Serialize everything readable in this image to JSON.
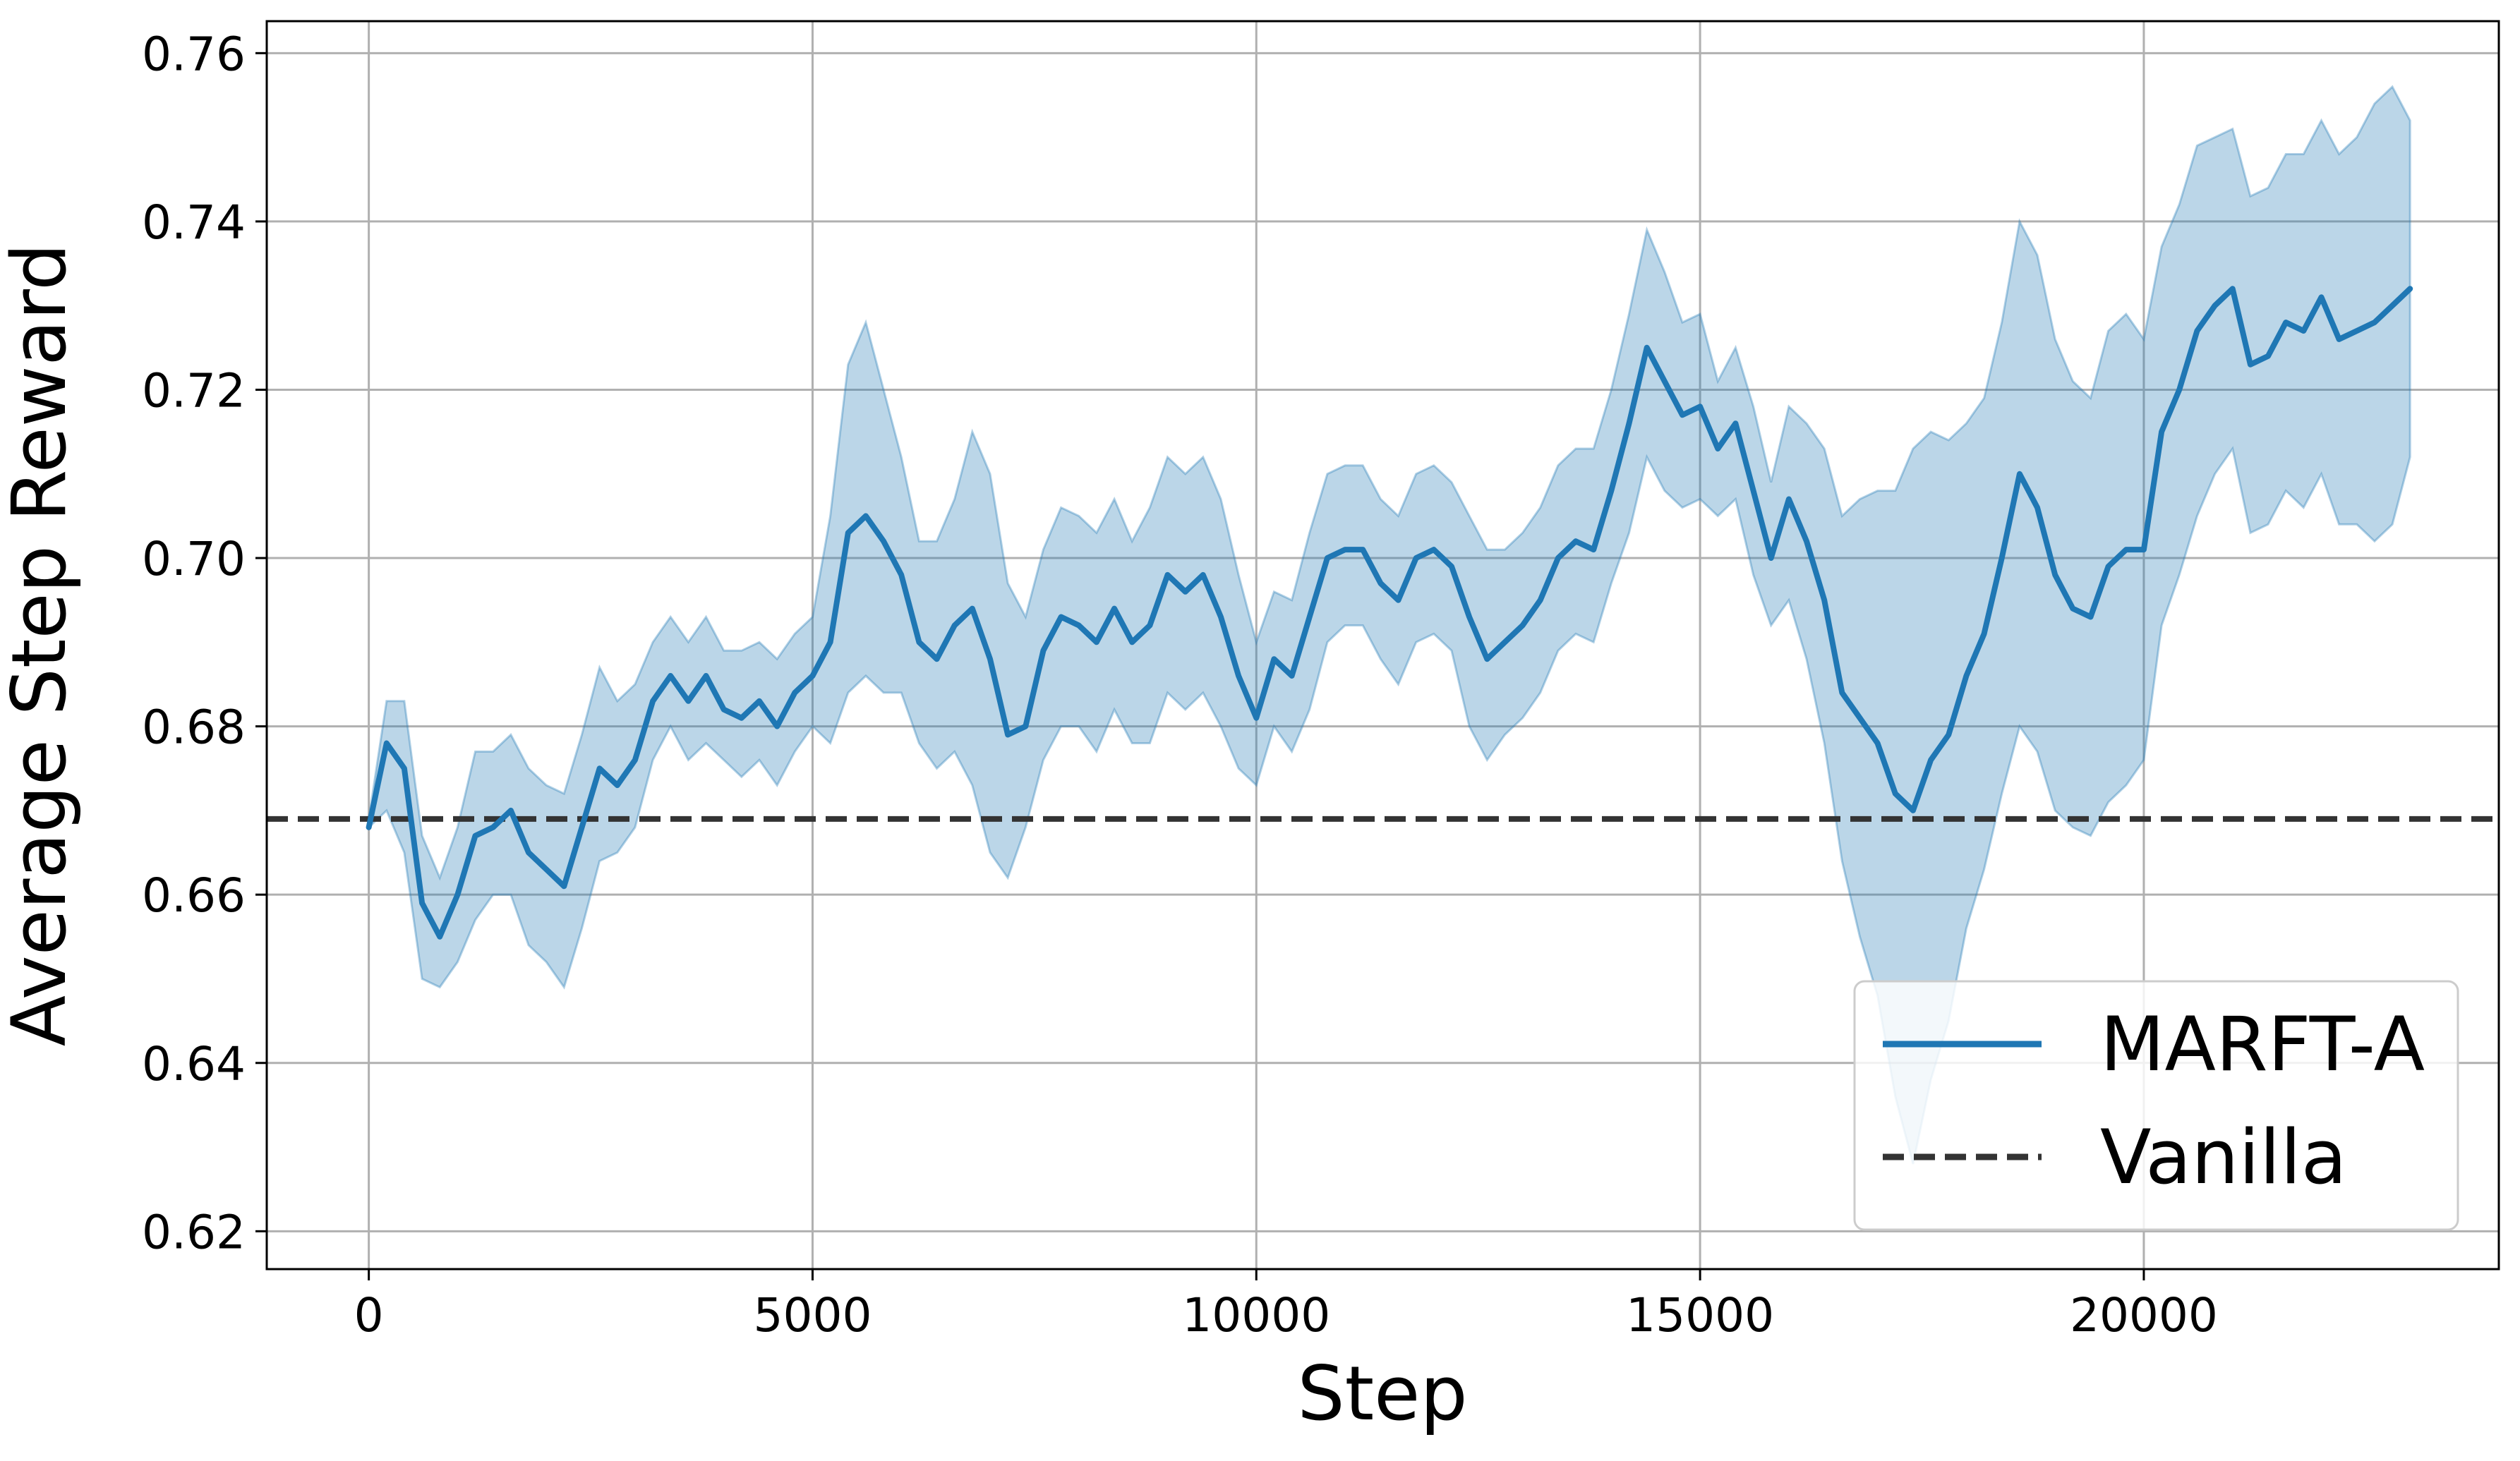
{
  "chart_data": {
    "type": "line",
    "xlabel": "Step",
    "ylabel": "Average Step Reward",
    "xlim": [
      -1150,
      24000
    ],
    "ylim": [
      0.6155,
      0.7638
    ],
    "x_ticks": [
      0,
      5000,
      10000,
      15000,
      20000
    ],
    "y_ticks": [
      0.62,
      0.64,
      0.66,
      0.68,
      0.7,
      0.72,
      0.74,
      0.76
    ],
    "grid": true,
    "legend_position": "bottom-right",
    "colors": {
      "series": "#1f77b4",
      "band": "#1f77b4",
      "baseline": "#333333"
    },
    "series": [
      {
        "name": "MARFT-A",
        "x": [
          0,
          200,
          400,
          600,
          800,
          1000,
          1200,
          1400,
          1600,
          1800,
          2000,
          2200,
          2400,
          2600,
          2800,
          3000,
          3200,
          3400,
          3600,
          3800,
          4000,
          4200,
          4400,
          4600,
          4800,
          5000,
          5200,
          5400,
          5600,
          5800,
          6000,
          6200,
          6400,
          6600,
          6800,
          7000,
          7200,
          7400,
          7600,
          7800,
          8000,
          8200,
          8400,
          8600,
          8800,
          9000,
          9200,
          9400,
          9600,
          9800,
          10000,
          10200,
          10400,
          10600,
          10800,
          11000,
          11200,
          11400,
          11600,
          11800,
          12000,
          12200,
          12400,
          12600,
          12800,
          13000,
          13200,
          13400,
          13600,
          13800,
          14000,
          14200,
          14400,
          14600,
          14800,
          15000,
          15200,
          15400,
          15600,
          15800,
          16000,
          16200,
          16400,
          16600,
          16800,
          17000,
          17200,
          17400,
          17600,
          17800,
          18000,
          18200,
          18400,
          18600,
          18800,
          19000,
          19200,
          19400,
          19600,
          19800,
          20000,
          20200,
          20400,
          20600,
          20800,
          21000,
          21200,
          21400,
          21600,
          21800,
          22000,
          22200,
          22400,
          22600,
          22800,
          23000
        ],
        "y": [
          0.668,
          0.678,
          0.675,
          0.659,
          0.655,
          0.66,
          0.667,
          0.668,
          0.67,
          0.665,
          0.663,
          0.661,
          0.668,
          0.675,
          0.673,
          0.676,
          0.683,
          0.686,
          0.683,
          0.686,
          0.682,
          0.681,
          0.683,
          0.68,
          0.684,
          0.686,
          0.69,
          0.703,
          0.705,
          0.702,
          0.698,
          0.69,
          0.688,
          0.692,
          0.694,
          0.688,
          0.679,
          0.68,
          0.689,
          0.693,
          0.692,
          0.69,
          0.694,
          0.69,
          0.692,
          0.698,
          0.696,
          0.698,
          0.693,
          0.686,
          0.681,
          0.688,
          0.686,
          0.693,
          0.7,
          0.701,
          0.701,
          0.697,
          0.695,
          0.7,
          0.701,
          0.699,
          0.693,
          0.688,
          0.69,
          0.692,
          0.695,
          0.7,
          0.702,
          0.701,
          0.708,
          0.716,
          0.725,
          0.721,
          0.717,
          0.718,
          0.713,
          0.716,
          0.708,
          0.7,
          0.707,
          0.702,
          0.695,
          0.684,
          0.681,
          0.678,
          0.672,
          0.67,
          0.676,
          0.679,
          0.686,
          0.691,
          0.7,
          0.71,
          0.706,
          0.698,
          0.694,
          0.693,
          0.699,
          0.701,
          0.701,
          0.715,
          0.72,
          0.727,
          0.73,
          0.732,
          0.723,
          0.724,
          0.728,
          0.727,
          0.731,
          0.726,
          0.727,
          0.728,
          0.73,
          0.732
        ],
        "band_lower": [
          0.668,
          0.67,
          0.665,
          0.65,
          0.649,
          0.652,
          0.657,
          0.66,
          0.66,
          0.654,
          0.652,
          0.649,
          0.656,
          0.664,
          0.665,
          0.668,
          0.676,
          0.68,
          0.676,
          0.678,
          0.676,
          0.674,
          0.676,
          0.673,
          0.677,
          0.68,
          0.678,
          0.684,
          0.686,
          0.684,
          0.684,
          0.678,
          0.675,
          0.677,
          0.673,
          0.665,
          0.662,
          0.668,
          0.676,
          0.68,
          0.68,
          0.677,
          0.682,
          0.678,
          0.678,
          0.684,
          0.682,
          0.684,
          0.68,
          0.675,
          0.673,
          0.68,
          0.677,
          0.682,
          0.69,
          0.692,
          0.692,
          0.688,
          0.685,
          0.69,
          0.691,
          0.689,
          0.68,
          0.676,
          0.679,
          0.681,
          0.684,
          0.689,
          0.691,
          0.69,
          0.697,
          0.703,
          0.712,
          0.708,
          0.706,
          0.707,
          0.705,
          0.707,
          0.698,
          0.692,
          0.695,
          0.688,
          0.678,
          0.664,
          0.655,
          0.648,
          0.636,
          0.628,
          0.638,
          0.645,
          0.656,
          0.663,
          0.672,
          0.68,
          0.677,
          0.67,
          0.668,
          0.667,
          0.671,
          0.673,
          0.676,
          0.692,
          0.698,
          0.705,
          0.71,
          0.713,
          0.703,
          0.704,
          0.708,
          0.706,
          0.71,
          0.704,
          0.704,
          0.702,
          0.704,
          0.712
        ],
        "band_upper": [
          0.669,
          0.683,
          0.683,
          0.667,
          0.662,
          0.668,
          0.677,
          0.677,
          0.679,
          0.675,
          0.673,
          0.672,
          0.679,
          0.687,
          0.683,
          0.685,
          0.69,
          0.693,
          0.69,
          0.693,
          0.689,
          0.689,
          0.69,
          0.688,
          0.691,
          0.693,
          0.705,
          0.723,
          0.728,
          0.72,
          0.712,
          0.702,
          0.702,
          0.707,
          0.715,
          0.71,
          0.697,
          0.693,
          0.701,
          0.706,
          0.705,
          0.703,
          0.707,
          0.702,
          0.706,
          0.712,
          0.71,
          0.712,
          0.707,
          0.698,
          0.69,
          0.696,
          0.695,
          0.703,
          0.71,
          0.711,
          0.711,
          0.707,
          0.705,
          0.71,
          0.711,
          0.709,
          0.705,
          0.701,
          0.701,
          0.703,
          0.706,
          0.711,
          0.713,
          0.713,
          0.72,
          0.729,
          0.739,
          0.734,
          0.728,
          0.729,
          0.721,
          0.725,
          0.718,
          0.709,
          0.718,
          0.716,
          0.713,
          0.705,
          0.707,
          0.708,
          0.708,
          0.713,
          0.715,
          0.714,
          0.716,
          0.719,
          0.728,
          0.74,
          0.736,
          0.726,
          0.721,
          0.719,
          0.727,
          0.729,
          0.726,
          0.737,
          0.742,
          0.749,
          0.75,
          0.751,
          0.743,
          0.744,
          0.748,
          0.748,
          0.752,
          0.748,
          0.75,
          0.754,
          0.756,
          0.752
        ]
      },
      {
        "name": "Vanilla",
        "style": "dashed",
        "y_constant": 0.669
      }
    ]
  }
}
